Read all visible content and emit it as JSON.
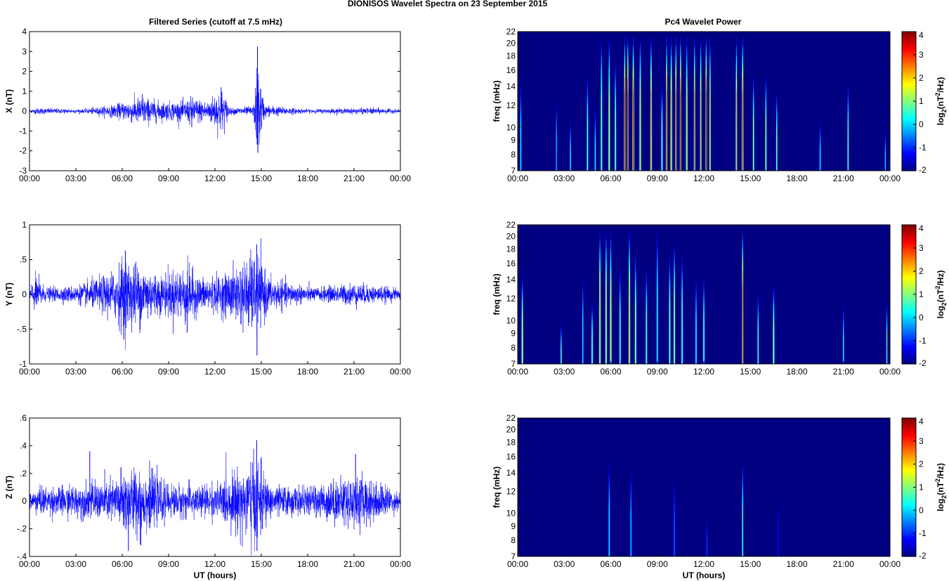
{
  "figure": {
    "title": "DIONISOS Wavelet Spectra on 23 September 2015",
    "left_title": "Filtered Series (cutoff at 7.5 mHz)",
    "right_title": "Pc4 Wavelet Power",
    "x_label": "UT (hours)"
  },
  "chart_data": [
    {
      "type": "line",
      "name": "X filtered series",
      "ylabel": "X (nT)",
      "xlabel": "",
      "x_ticks": [
        "00:00",
        "03:00",
        "06:00",
        "09:00",
        "12:00",
        "15:00",
        "18:00",
        "21:00",
        "00:00"
      ],
      "xlim_hours": [
        0,
        24
      ],
      "ylim": [
        -3,
        4
      ],
      "y_ticks": [
        -3,
        -2,
        -1,
        0,
        1,
        2,
        3,
        4
      ],
      "color": "#0000ff",
      "noise_baseline_amplitude": 0.08,
      "envelope": [
        [
          0.0,
          0.1
        ],
        [
          0.5,
          0.2
        ],
        [
          3.5,
          0.12
        ],
        [
          5.5,
          0.4
        ],
        [
          6.5,
          0.7
        ],
        [
          7.3,
          0.9
        ],
        [
          8.5,
          0.6
        ],
        [
          10.0,
          0.6
        ],
        [
          10.5,
          0.9
        ],
        [
          11.5,
          0.6
        ],
        [
          12.4,
          1.5
        ],
        [
          13.0,
          0.2
        ],
        [
          14.5,
          0.3
        ],
        [
          14.75,
          3.2
        ],
        [
          15.2,
          0.4
        ],
        [
          16.5,
          0.25
        ],
        [
          18.0,
          0.12
        ],
        [
          22.3,
          0.2
        ],
        [
          24.0,
          0.1
        ]
      ],
      "spikes": [
        [
          14.75,
          3.25
        ],
        [
          14.78,
          -2.1
        ],
        [
          12.4,
          1.2
        ],
        [
          10.5,
          -0.8
        ],
        [
          7.3,
          0.85
        ]
      ]
    },
    {
      "type": "line",
      "name": "Y filtered series",
      "ylabel": "Y (nT)",
      "xlabel": "",
      "x_ticks": [
        "00:00",
        "03:00",
        "06:00",
        "09:00",
        "12:00",
        "15:00",
        "18:00",
        "21:00",
        "00:00"
      ],
      "xlim_hours": [
        0,
        24
      ],
      "ylim": [
        -1,
        1
      ],
      "y_ticks": [
        -1,
        -0.5,
        0,
        0.5,
        1
      ],
      "color": "#0000ff",
      "noise_baseline_amplitude": 0.06,
      "envelope": [
        [
          0.0,
          0.15
        ],
        [
          0.5,
          0.35
        ],
        [
          1.0,
          0.12
        ],
        [
          3.0,
          0.15
        ],
        [
          4.5,
          0.3
        ],
        [
          5.5,
          0.45
        ],
        [
          6.0,
          0.65
        ],
        [
          7.3,
          0.55
        ],
        [
          8.5,
          0.35
        ],
        [
          10.2,
          0.55
        ],
        [
          11.0,
          0.3
        ],
        [
          12.5,
          0.35
        ],
        [
          14.7,
          0.75
        ],
        [
          15.5,
          0.3
        ],
        [
          17.0,
          0.2
        ],
        [
          18.5,
          0.12
        ],
        [
          21.0,
          0.2
        ],
        [
          24.0,
          0.1
        ]
      ],
      "spikes": [
        [
          14.7,
          0.72
        ],
        [
          14.72,
          -0.88
        ],
        [
          6.1,
          -0.65
        ],
        [
          6.2,
          0.63
        ],
        [
          10.2,
          -0.55
        ]
      ]
    },
    {
      "type": "line",
      "name": "Z filtered series",
      "ylabel": "Z (nT)",
      "xlabel": "UT (hours)",
      "x_ticks": [
        "00:00",
        "03:00",
        "06:00",
        "09:00",
        "12:00",
        "15:00",
        "18:00",
        "21:00",
        "00:00"
      ],
      "xlim_hours": [
        0,
        24
      ],
      "ylim": [
        -0.4,
        0.6
      ],
      "y_ticks": [
        -0.4,
        -0.2,
        0,
        0.2,
        0.4,
        0.6
      ],
      "color": "#0000ff",
      "noise_baseline_amplitude": 0.06,
      "envelope": [
        [
          0.0,
          0.08
        ],
        [
          0.5,
          0.12
        ],
        [
          3.5,
          0.15
        ],
        [
          5.5,
          0.2
        ],
        [
          6.0,
          0.3
        ],
        [
          7.3,
          0.3
        ],
        [
          9.0,
          0.15
        ],
        [
          12.0,
          0.15
        ],
        [
          14.7,
          0.4
        ],
        [
          15.5,
          0.15
        ],
        [
          18.0,
          0.12
        ],
        [
          21.2,
          0.25
        ],
        [
          24.0,
          0.08
        ]
      ],
      "spikes": [
        [
          14.7,
          0.44
        ],
        [
          14.72,
          -0.36
        ],
        [
          3.9,
          0.36
        ],
        [
          6.4,
          -0.36
        ],
        [
          7.2,
          -0.32
        ],
        [
          21.1,
          0.34
        ]
      ]
    },
    {
      "type": "heatmap",
      "name": "X Pc4 wavelet power",
      "ylabel": "freq (mHz)",
      "xlabel": "",
      "x_ticks": [
        "00:00",
        "03:00",
        "06:00",
        "09:00",
        "12:00",
        "15:00",
        "18:00",
        "21:00",
        "00:00"
      ],
      "xlim_hours": [
        0,
        24
      ],
      "y_ticks": [
        7,
        8,
        9,
        10,
        12,
        14,
        16,
        18,
        20,
        22
      ],
      "ylim_mhz": [
        7,
        22
      ],
      "y_scale": "log",
      "colorbar": {
        "label": "log2(nT2/Hz)",
        "label_main": "log",
        "label_sub": "2",
        "label_open": "(nT",
        "label_sup": "2",
        "label_close": "/Hz)",
        "range": [
          -2,
          4
        ],
        "ticks": [
          -2,
          -1,
          0,
          1,
          2,
          3,
          4
        ],
        "colormap": "jet"
      },
      "background": -2,
      "streaks": [
        [
          0.2,
          0.5,
          15,
          0.1
        ],
        [
          2.5,
          0.2,
          13,
          0.08
        ],
        [
          3.4,
          0.4,
          11,
          0.1
        ],
        [
          4.5,
          0.9,
          16,
          0.12
        ],
        [
          5.0,
          0.5,
          12,
          0.1
        ],
        [
          5.4,
          1.2,
          22,
          0.12
        ],
        [
          5.9,
          1.8,
          22,
          0.12
        ],
        [
          6.3,
          1.2,
          18,
          0.12
        ],
        [
          6.9,
          3.5,
          22,
          0.1
        ],
        [
          7.1,
          4.0,
          22,
          0.1
        ],
        [
          7.45,
          3.5,
          22,
          0.12
        ],
        [
          7.9,
          2.0,
          22,
          0.12
        ],
        [
          8.6,
          2.8,
          22,
          0.12
        ],
        [
          9.3,
          1.0,
          15,
          0.12
        ],
        [
          9.6,
          3.5,
          22,
          0.1
        ],
        [
          9.9,
          2.5,
          22,
          0.12
        ],
        [
          10.2,
          3.5,
          22,
          0.1
        ],
        [
          10.5,
          4.0,
          22,
          0.1
        ],
        [
          10.9,
          2.0,
          22,
          0.12
        ],
        [
          11.4,
          3.0,
          22,
          0.1
        ],
        [
          11.8,
          2.5,
          22,
          0.1
        ],
        [
          12.15,
          4.0,
          22,
          0.1
        ],
        [
          12.4,
          2.0,
          22,
          0.1
        ],
        [
          14.1,
          2.5,
          22,
          0.1
        ],
        [
          14.5,
          3.5,
          22,
          0.12
        ],
        [
          15.2,
          1.5,
          16,
          0.1
        ],
        [
          16.0,
          1.5,
          16,
          0.1
        ],
        [
          16.7,
          1.2,
          14,
          0.1
        ],
        [
          19.5,
          0.3,
          11,
          0.1
        ],
        [
          21.3,
          1.0,
          15,
          0.1
        ],
        [
          23.7,
          0.2,
          10,
          0.08
        ]
      ]
    },
    {
      "type": "heatmap",
      "name": "Y Pc4 wavelet power",
      "ylabel": "freq (mHz)",
      "xlabel": "",
      "x_ticks": [
        "00:00",
        "03:00",
        "06:00",
        "09:00",
        "12:00",
        "15:00",
        "18:00",
        "21:00",
        "00:00"
      ],
      "xlim_hours": [
        0,
        24
      ],
      "y_ticks": [
        7,
        8,
        9,
        10,
        12,
        14,
        16,
        18,
        20,
        22
      ],
      "ylim_mhz": [
        7,
        22
      ],
      "y_scale": "log",
      "colorbar": {
        "label": "log2(nT2/Hz)",
        "label_main": "log",
        "label_sub": "2",
        "label_open": "(nT",
        "label_sup": "2",
        "label_close": "/Hz)",
        "range": [
          -2,
          4
        ],
        "ticks": [
          -2,
          -1,
          0,
          1,
          2,
          3,
          4
        ],
        "colormap": "jet"
      },
      "background": -2,
      "streaks": [
        [
          0.3,
          1.8,
          15,
          0.12
        ],
        [
          2.8,
          0.9,
          10,
          0.1
        ],
        [
          4.2,
          0.4,
          15,
          0.1
        ],
        [
          4.8,
          1.2,
          12,
          0.12
        ],
        [
          5.3,
          2.2,
          22,
          0.12
        ],
        [
          5.7,
          2.0,
          22,
          0.12
        ],
        [
          6.0,
          1.8,
          22,
          0.12
        ],
        [
          6.6,
          0.9,
          16,
          0.12
        ],
        [
          7.2,
          2.2,
          22,
          0.12
        ],
        [
          7.6,
          1.5,
          18,
          0.12
        ],
        [
          8.3,
          1.0,
          16,
          0.12
        ],
        [
          9.0,
          0.6,
          22,
          0.12
        ],
        [
          9.8,
          1.2,
          18,
          0.12
        ],
        [
          10.1,
          1.5,
          20,
          0.12
        ],
        [
          10.6,
          1.0,
          18,
          0.12
        ],
        [
          11.5,
          0.5,
          15,
          0.12
        ],
        [
          12.0,
          1.0,
          15,
          0.12
        ],
        [
          14.5,
          3.6,
          22,
          0.1
        ],
        [
          15.5,
          1.0,
          13,
          0.1
        ],
        [
          16.5,
          1.5,
          14,
          0.12
        ],
        [
          21.0,
          0.4,
          12,
          0.1
        ],
        [
          23.8,
          1.0,
          12,
          0.08
        ]
      ]
    },
    {
      "type": "heatmap",
      "name": "Z Pc4 wavelet power",
      "ylabel": "freq (mHz)",
      "xlabel": "UT (hours)",
      "x_ticks": [
        "00:00",
        "03:00",
        "06:00",
        "09:00",
        "12:00",
        "15:00",
        "18:00",
        "21:00",
        "00:00"
      ],
      "xlim_hours": [
        0,
        24
      ],
      "y_ticks": [
        7,
        8,
        9,
        10,
        12,
        14,
        16,
        18,
        20,
        22
      ],
      "ylim_mhz": [
        7,
        22
      ],
      "y_scale": "log",
      "colorbar": {
        "label": "log2(nT2/Hz)",
        "label_main": "log",
        "label_sub": "2",
        "label_open": "(nT",
        "label_sup": "2",
        "label_close": "/Hz)",
        "range": [
          -2,
          4
        ],
        "ticks": [
          -2,
          -1,
          0,
          1,
          2,
          3,
          4
        ],
        "colormap": "jet"
      },
      "background": -2,
      "streaks": [
        [
          5.9,
          0.2,
          16,
          0.12
        ],
        [
          7.3,
          0.0,
          15,
          0.12
        ],
        [
          10.1,
          -0.6,
          14,
          0.12
        ],
        [
          12.2,
          -0.8,
          10,
          0.1
        ],
        [
          14.5,
          0.9,
          16,
          0.1
        ],
        [
          16.8,
          -1.2,
          12,
          0.1
        ]
      ]
    }
  ]
}
